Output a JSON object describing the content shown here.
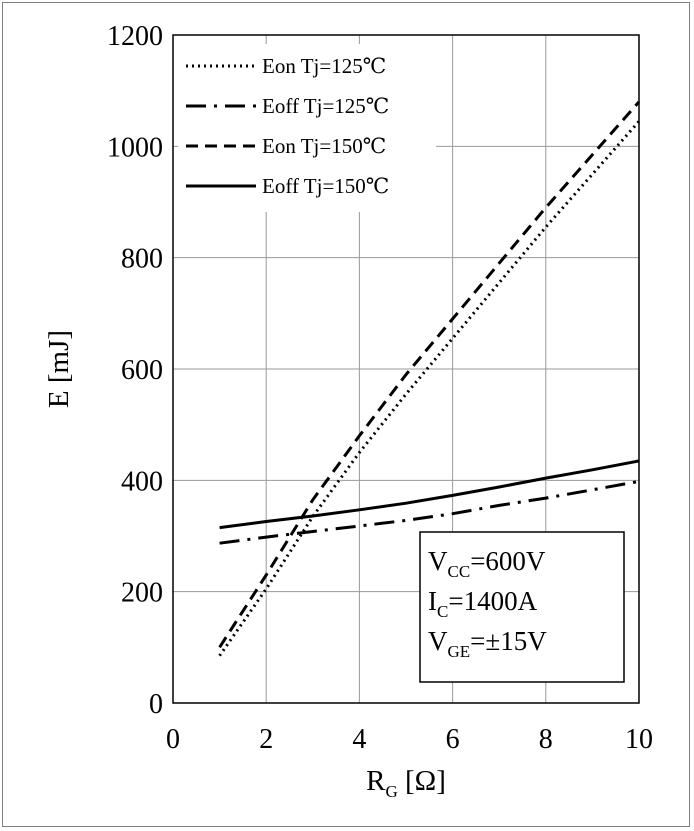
{
  "chart_data": {
    "type": "line",
    "title": "",
    "xlabel": "R",
    "xlabel_sub": "G",
    "xlabel_unit": " [Ω]",
    "ylabel": "E [mJ]",
    "xlim": [
      0,
      10
    ],
    "ylim": [
      0,
      1200
    ],
    "x_ticks": [
      0,
      2,
      4,
      6,
      8,
      10
    ],
    "y_ticks": [
      0,
      200,
      400,
      600,
      800,
      1000,
      1200
    ],
    "x_tick_labels": [
      "0",
      "2",
      "4",
      "6",
      "8",
      "10"
    ],
    "y_tick_labels": [
      "0",
      "200",
      "400",
      "600",
      "800",
      "1000",
      "1200"
    ],
    "grid": true,
    "legend_position": "top-left",
    "series": [
      {
        "name": "Eon Tj=125℃",
        "style": "dotted",
        "x": [
          1,
          2,
          3,
          4,
          5,
          6,
          7,
          8,
          9,
          10
        ],
        "y": [
          85,
          205,
          335,
          450,
          555,
          655,
          755,
          855,
          950,
          1045
        ]
      },
      {
        "name": "Eoff Tj=125℃",
        "style": "dashdot",
        "x": [
          1,
          2,
          3,
          4,
          5,
          6,
          7,
          8,
          9,
          10
        ],
        "y": [
          287,
          298,
          308,
          318,
          328,
          340,
          355,
          368,
          383,
          398
        ]
      },
      {
        "name": "Eon Tj=150℃",
        "style": "dashed",
        "x": [
          1,
          2,
          3,
          4,
          5,
          6,
          7,
          8,
          9,
          10
        ],
        "y": [
          100,
          230,
          365,
          480,
          590,
          690,
          790,
          890,
          985,
          1080
        ]
      },
      {
        "name": "Eoff Tj=150℃",
        "style": "solid",
        "x": [
          1,
          2,
          3,
          4,
          5,
          6,
          7,
          8,
          9,
          10
        ],
        "y": [
          315,
          326,
          336,
          347,
          359,
          373,
          388,
          404,
          419,
          435
        ]
      }
    ],
    "conditions": [
      {
        "main": "V",
        "sub": "CC",
        "rest": "=600V"
      },
      {
        "main": "I",
        "sub": "C",
        "rest": "=1400A"
      },
      {
        "main": "V",
        "sub": "GE",
        "rest": "=±15V"
      }
    ]
  }
}
